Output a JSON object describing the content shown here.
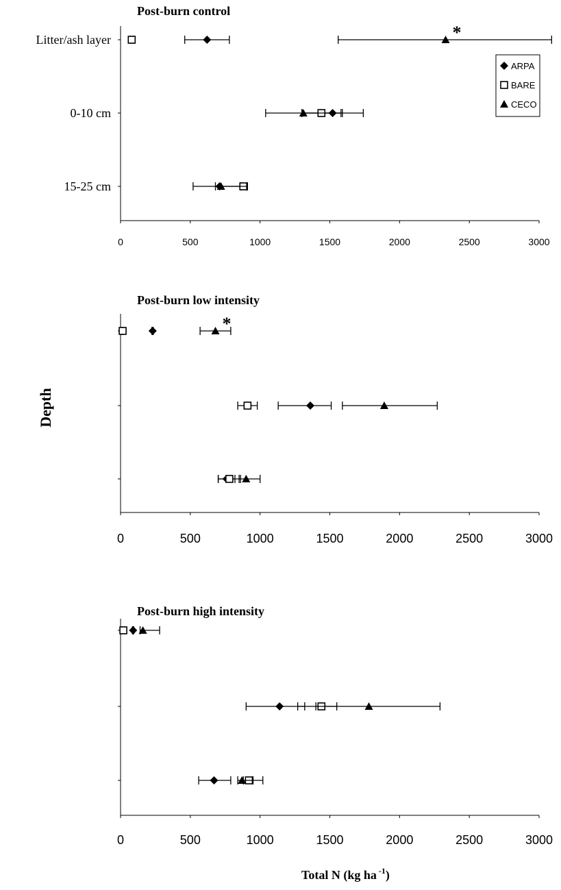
{
  "figure": {
    "shared_ylabel": "Depth",
    "shared_xlabel_main": "Total N (kg ha",
    "shared_xlabel_sup": "-1",
    "shared_xlabel_close": ")"
  },
  "legend": {
    "entries": [
      {
        "label": "ARPA",
        "marker": "diamond"
      },
      {
        "label": "BARE",
        "marker": "square-open"
      },
      {
        "label": "CECO",
        "marker": "triangle"
      }
    ]
  },
  "chart_data": [
    {
      "type": "scatter",
      "title": "Post-burn control",
      "depth_labels": [
        "Litter/ash layer",
        "0-10 cm",
        "15-25 cm"
      ],
      "xticks": [
        "0",
        "500",
        "1000",
        "1500",
        "2000",
        "2500",
        "3000"
      ],
      "xlim": [
        0,
        3000
      ],
      "orientation": "horizontal-error-bars",
      "legend_position": "top-right",
      "series": [
        {
          "name": "ARPA",
          "marker": "diamond",
          "values": [
            620,
            1520,
            710
          ],
          "err_low": [
            460,
            1300,
            520
          ],
          "err_high": [
            780,
            1590,
            870
          ]
        },
        {
          "name": "BARE",
          "marker": "square-open",
          "values": [
            80,
            1440,
            880
          ],
          "err_low": [
            70,
            1300,
            860
          ],
          "err_high": [
            90,
            1580,
            900
          ]
        },
        {
          "name": "CECO",
          "marker": "triangle",
          "values": [
            2330,
            1310,
            720
          ],
          "err_low": [
            1560,
            1040,
            680
          ],
          "err_high": [
            3090,
            1740,
            910
          ]
        }
      ],
      "annotations": [
        {
          "text": "*",
          "depth": "Litter/ash layer"
        }
      ]
    },
    {
      "type": "scatter",
      "title": "Post-burn low intensity",
      "depth_labels": [
        "",
        "",
        ""
      ],
      "xticks": [
        "0",
        "500",
        "1000",
        "1500",
        "2000",
        "2500",
        "3000"
      ],
      "xlim": [
        0,
        3000
      ],
      "orientation": "horizontal-error-bars",
      "series": [
        {
          "name": "ARPA",
          "marker": "diamond",
          "values": [
            230,
            1360,
            760
          ],
          "err_low": [
            225,
            1130,
            700
          ],
          "err_high": [
            235,
            1510,
            820
          ]
        },
        {
          "name": "BARE",
          "marker": "square-open",
          "values": [
            15,
            910,
            780
          ],
          "err_low": [
            10,
            840,
            700
          ],
          "err_high": [
            20,
            980,
            860
          ]
        },
        {
          "name": "CECO",
          "marker": "triangle",
          "values": [
            680,
            1890,
            900
          ],
          "err_low": [
            570,
            1590,
            850
          ],
          "err_high": [
            790,
            2270,
            1000
          ]
        }
      ],
      "annotations": [
        {
          "text": "*",
          "depth": "Litter/ash layer"
        }
      ]
    },
    {
      "type": "scatter",
      "title": "Post-burn high intensity",
      "depth_labels": [
        "",
        "",
        ""
      ],
      "xticks": [
        "0",
        "500",
        "1000",
        "1500",
        "2000",
        "2500",
        "3000"
      ],
      "xlim": [
        0,
        3000
      ],
      "orientation": "horizontal-error-bars",
      "series": [
        {
          "name": "ARPA",
          "marker": "diamond",
          "values": [
            90,
            1140,
            670
          ],
          "err_low": [
            85,
            900,
            560
          ],
          "err_high": [
            95,
            1320,
            790
          ]
        },
        {
          "name": "BARE",
          "marker": "square-open",
          "values": [
            20,
            1440,
            920
          ],
          "err_low": [
            10,
            1270,
            880
          ],
          "err_high": [
            30,
            1550,
            1020
          ]
        },
        {
          "name": "CECO",
          "marker": "triangle",
          "values": [
            160,
            1780,
            870
          ],
          "err_low": [
            140,
            1400,
            840
          ],
          "err_high": [
            280,
            2290,
            950
          ]
        }
      ]
    }
  ]
}
